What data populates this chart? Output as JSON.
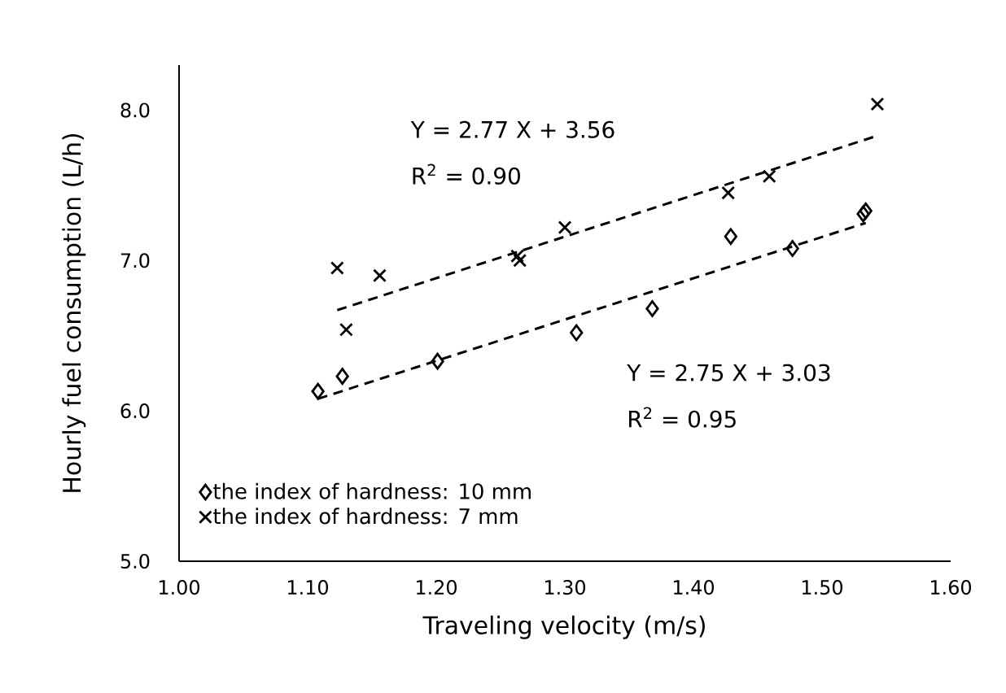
{
  "chart_data": {
    "type": "scatter",
    "xlabel": "Traveling velocity (m/s)",
    "ylabel": "Hourly fuel consumption (L/h)",
    "xlim": [
      1.0,
      1.6
    ],
    "xticks": [
      {
        "value": 1.0,
        "label": "1.00"
      },
      {
        "value": 1.1,
        "label": "1.10"
      },
      {
        "value": 1.2,
        "label": "1.20"
      },
      {
        "value": 1.3,
        "label": "1.30"
      },
      {
        "value": 1.4,
        "label": "1.40"
      },
      {
        "value": 1.5,
        "label": "1.50"
      },
      {
        "value": 1.6,
        "label": "1.60"
      }
    ],
    "ylim": [
      5.0,
      8.3
    ],
    "yticks": [
      {
        "value": 5.0,
        "label": "5.0"
      },
      {
        "value": 6.0,
        "label": "6.0"
      },
      {
        "value": 7.0,
        "label": "7.0"
      },
      {
        "value": 8.0,
        "label": "8.0"
      }
    ],
    "grid": false,
    "legend": "bottom left",
    "series": [
      {
        "name": "the index of hardness: 10 mm",
        "color": "#000000",
        "marker": "diamond",
        "x": [
          1.108,
          1.127,
          1.201,
          1.309,
          1.368,
          1.429,
          1.477,
          1.532,
          1.534
        ],
        "values": [
          6.13,
          6.23,
          6.33,
          6.52,
          6.68,
          7.16,
          7.08,
          7.31,
          7.33
        ]
      },
      {
        "name": "the index of hardness:   7 mm",
        "color": "#000000",
        "marker": "cross",
        "x": [
          1.123,
          1.156,
          1.13,
          1.263,
          1.265,
          1.3,
          1.427,
          1.459,
          1.543
        ],
        "values": [
          6.95,
          6.9,
          6.54,
          7.03,
          7.0,
          7.22,
          7.45,
          7.56,
          8.04
        ]
      },
      {
        "type": "line",
        "color": "#000000",
        "marker": "none",
        "line_style": "dashed",
        "x": [
          1.108,
          1.534
        ],
        "values": [
          6.08,
          7.25
        ]
      },
      {
        "type": "line",
        "color": "#000000",
        "marker": "none",
        "line_style": "dashed",
        "x": [
          1.123,
          1.543
        ],
        "values": [
          6.67,
          7.83
        ]
      }
    ],
    "annotations": [
      "Y   = 2.77 X + 3.56",
      "R$^{2}$ = 0.90",
      "Y   = 2.75 X + 3.03",
      "R$^{2}$ = 0.95"
    ]
  }
}
